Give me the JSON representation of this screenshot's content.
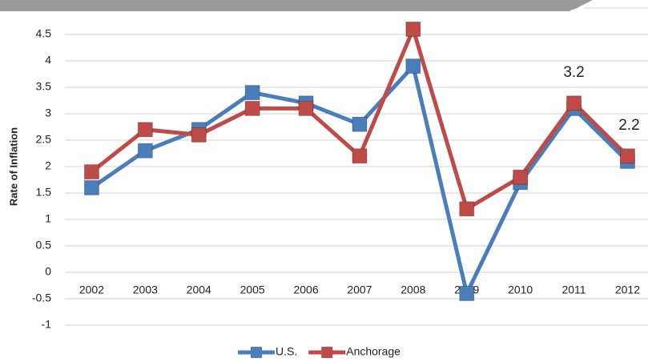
{
  "chart_data": {
    "type": "line",
    "y_label": "Rate of Inflation",
    "categories": [
      "2002",
      "2003",
      "2004",
      "2005",
      "2006",
      "2007",
      "2008",
      "2009",
      "2010",
      "2011",
      "2012"
    ],
    "series": [
      {
        "name": "U.S.",
        "color": "#4a7ebb",
        "values": [
          1.6,
          2.3,
          2.7,
          3.4,
          3.2,
          2.8,
          3.9,
          -0.4,
          1.7,
          3.1,
          2.1
        ]
      },
      {
        "name": "Anchorage",
        "color": "#be4b48",
        "values": [
          1.9,
          2.7,
          2.6,
          3.1,
          3.1,
          2.2,
          4.6,
          1.2,
          1.8,
          3.2,
          2.2
        ],
        "value_labels": [
          null,
          null,
          null,
          null,
          null,
          null,
          null,
          null,
          null,
          "3.2",
          "2.2"
        ]
      }
    ],
    "ylim": [
      -1,
      5
    ],
    "yticks": [
      -1,
      -0.5,
      0,
      0.5,
      1,
      1.5,
      2,
      2.5,
      3,
      3.5,
      4,
      4.5,
      5
    ],
    "grid": true,
    "legend": "bottom"
  }
}
